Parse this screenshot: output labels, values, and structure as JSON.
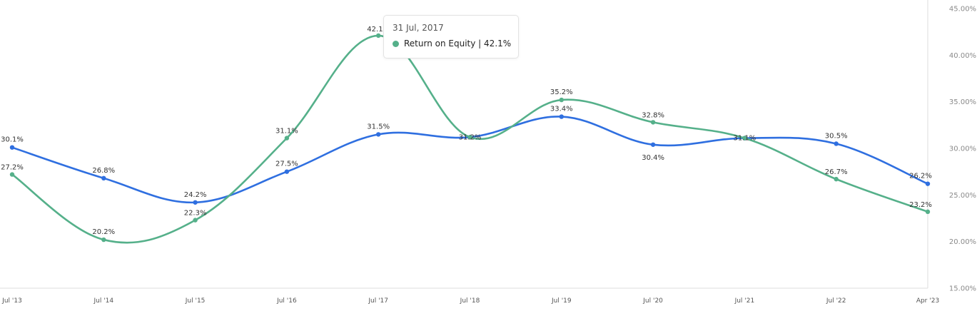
{
  "colors": {
    "blue_series": "#2f6fe0",
    "green_series": "#55b08a",
    "axis": "#dddddd",
    "tooltip_border": "#e3e3e3"
  },
  "tooltip": {
    "date": "31 Jul, 2017",
    "series_name": "Return on Equity",
    "separator": "|",
    "value": "42.1%"
  },
  "chart_data": {
    "type": "line",
    "categories": [
      "Jul '13",
      "Jul '14",
      "Jul '15",
      "Jul '16",
      "Jul '17",
      "Jul '18",
      "Jul '19",
      "Jul '20",
      "Jul '21",
      "Jul '22",
      "Apr '23"
    ],
    "series": [
      {
        "values": [
          30.1,
          26.8,
          24.2,
          27.5,
          31.5,
          31.2,
          33.4,
          30.4,
          31.1,
          30.5,
          26.2
        ],
        "labels": [
          "30.1%",
          "26.8%",
          "24.2%",
          "27.5%",
          "31.5%",
          "31.2%",
          "33.4%",
          "30.4%",
          "31.1%",
          "30.5%",
          "26.2%"
        ],
        "color": "#2f6fe0"
      },
      {
        "name": "Return on Equity",
        "values": [
          27.2,
          20.2,
          22.3,
          31.1,
          42.1,
          31.2,
          35.2,
          32.8,
          31.1,
          26.7,
          23.2
        ],
        "labels": [
          "27.2%",
          "20.2%",
          "22.3%",
          "31.1%",
          "42.1%",
          "",
          "35.2%",
          "32.8%",
          "",
          "26.7%",
          "23.2%"
        ],
        "color": "#55b08a"
      }
    ],
    "ylim": [
      15,
      45
    ],
    "yticks": [
      45,
      40,
      35,
      30,
      25,
      20,
      15
    ],
    "ytick_labels": [
      "45.00%",
      "40.00%",
      "35.00%",
      "30.00%",
      "25.00%",
      "20.00%",
      "15.00%"
    ],
    "y_axis_position": "right",
    "grid": false,
    "legend": "none"
  }
}
